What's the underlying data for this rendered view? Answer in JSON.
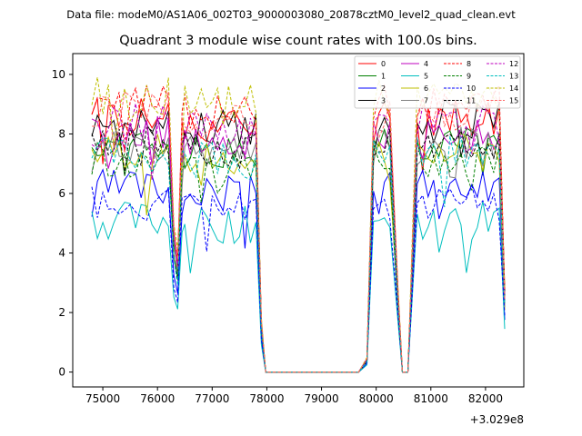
{
  "header": {
    "data_file": "Data file: modeM0/AS1A06_002T03_9000003080_20878cztM0_level2_quad_clean.evt"
  },
  "chart_data": {
    "type": "line",
    "title": "Quadrant 3 module wise count rates with 100.0s bins.",
    "xlabel": "",
    "ylabel": "",
    "offset_label": "+3.029e8",
    "xlim": [
      74450,
      82700
    ],
    "ylim": [
      -0.5,
      10.7
    ],
    "x_ticks": [
      75000,
      76000,
      77000,
      78000,
      79000,
      80000,
      81000,
      82000
    ],
    "x_tick_labels": [
      "75000",
      "76000",
      "77000",
      "78000",
      "79000",
      "80000",
      "81000",
      "82000"
    ],
    "y_ticks": [
      0,
      2,
      4,
      6,
      8,
      10
    ],
    "y_tick_labels": [
      "0",
      "2",
      "4",
      "6",
      "8",
      "10"
    ],
    "legend_position": "top-right",
    "series": [
      {
        "name": "0",
        "color": "#ff0000",
        "style": "solid",
        "base": 8.6
      },
      {
        "name": "1",
        "color": "#008000",
        "style": "solid",
        "base": 7.7
      },
      {
        "name": "2",
        "color": "#0000ff",
        "style": "solid",
        "base": 6.2
      },
      {
        "name": "3",
        "color": "#000000",
        "style": "solid",
        "base": 8.5
      },
      {
        "name": "4",
        "color": "#bf00bf",
        "style": "solid",
        "base": 8.0
      },
      {
        "name": "5",
        "color": "#00bfbf",
        "style": "solid",
        "base": 5.1
      },
      {
        "name": "6",
        "color": "#bfbf00",
        "style": "solid",
        "base": 7.4
      },
      {
        "name": "7",
        "color": "#808080",
        "style": "solid",
        "base": 7.6
      },
      {
        "name": "8",
        "color": "#ff0000",
        "style": "dashed",
        "base": 9.0
      },
      {
        "name": "9",
        "color": "#008000",
        "style": "dashed",
        "base": 7.2
      },
      {
        "name": "10",
        "color": "#0000ff",
        "style": "dashed",
        "base": 5.7
      },
      {
        "name": "11",
        "color": "#000000",
        "style": "dashed",
        "base": 7.7
      },
      {
        "name": "12",
        "color": "#bf00bf",
        "style": "dashed",
        "base": 8.4
      },
      {
        "name": "13",
        "color": "#00bfbf",
        "style": "dashed",
        "base": 7.3
      },
      {
        "name": "14",
        "color": "#bfbf00",
        "style": "dashed",
        "base": 9.3
      },
      {
        "name": "15",
        "color": "#ff6666",
        "style": "dashed",
        "base": 8.8
      }
    ],
    "segments": [
      {
        "x_start": 74800,
        "x_end": 76200,
        "level": 1.0
      },
      {
        "x": 76300,
        "level": 0.55
      },
      {
        "x": 76370,
        "level": 0.42
      },
      {
        "x": 76450,
        "level": 0.95
      },
      {
        "x_start": 76500,
        "x_end": 77800,
        "level": 0.97
      },
      {
        "x": 77900,
        "level": 0.2
      },
      {
        "x_start": 77980,
        "x_end": 79750,
        "level": 0.0
      },
      {
        "x": 79830,
        "level": 0.05
      },
      {
        "x_start": 79950,
        "x_end": 80300,
        "level": 1.0
      },
      {
        "x": 80400,
        "level": 0.3
      },
      {
        "x_start": 80480,
        "x_end": 80650,
        "level": 0.0
      },
      {
        "x_start": 80750,
        "x_end": 82300,
        "level": 1.0
      },
      {
        "x": 82350,
        "level": 0.3
      }
    ]
  }
}
